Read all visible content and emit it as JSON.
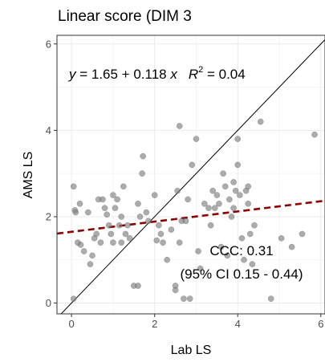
{
  "chart_data": {
    "type": "scatter",
    "title": "Linear score (DIM 3",
    "xlabel": "Lab LS",
    "ylabel": "AMS LS",
    "xlim": [
      -0.35,
      6.1
    ],
    "ylim": [
      -0.25,
      6.2
    ],
    "x_ticks": [
      0,
      2,
      4,
      6
    ],
    "y_ticks": [
      0,
      2,
      4,
      6
    ],
    "grid": true,
    "colors": {
      "points": "#7f7f7f",
      "regression": "#8b0000",
      "identity": "#000000"
    },
    "equation": {
      "lhs": "y",
      "text": " = 1.65 + 0.118 ",
      "var": "x",
      "r2_label": "R",
      "r2_exp": "2",
      "r2_value": " = 0.04"
    },
    "ccc_line1": "CCC: 0.31",
    "ccc_line2": "(95% CI 0.15 - 0.44)",
    "identity_line": {
      "intercept": 0,
      "slope": 1
    },
    "regression_line": {
      "intercept": 1.65,
      "slope": 0.118
    },
    "points": [
      [
        0.05,
        2.7
      ],
      [
        0.08,
        2.15
      ],
      [
        0.1,
        2.1
      ],
      [
        0.15,
        1.4
      ],
      [
        0.2,
        2.3
      ],
      [
        0.22,
        1.35
      ],
      [
        0.3,
        1.2
      ],
      [
        0.05,
        0.1
      ],
      [
        0.4,
        2.1
      ],
      [
        0.45,
        0.9
      ],
      [
        0.5,
        1.1
      ],
      [
        0.55,
        1.5
      ],
      [
        0.6,
        1.6
      ],
      [
        0.65,
        2.4
      ],
      [
        0.7,
        1.4
      ],
      [
        0.75,
        2.4
      ],
      [
        0.8,
        2.2
      ],
      [
        0.85,
        2.05
      ],
      [
        0.9,
        1.8
      ],
      [
        0.95,
        1.6
      ],
      [
        1.0,
        2.5
      ],
      [
        1.0,
        1.4
      ],
      [
        1.05,
        2.2
      ],
      [
        1.1,
        2.4
      ],
      [
        1.15,
        1.8
      ],
      [
        1.2,
        2.0
      ],
      [
        1.2,
        1.4
      ],
      [
        1.25,
        2.7
      ],
      [
        1.3,
        1.6
      ],
      [
        1.35,
        1.8
      ],
      [
        1.4,
        1.5
      ],
      [
        1.5,
        0.4
      ],
      [
        1.6,
        0.4
      ],
      [
        1.6,
        2.3
      ],
      [
        1.65,
        2.0
      ],
      [
        1.7,
        3.0
      ],
      [
        1.72,
        3.4
      ],
      [
        1.8,
        2.1
      ],
      [
        1.85,
        1.9
      ],
      [
        2.0,
        2.5
      ],
      [
        2.05,
        1.45
      ],
      [
        2.1,
        1.8
      ],
      [
        2.15,
        1.6
      ],
      [
        2.2,
        1.4
      ],
      [
        2.3,
        1.0
      ],
      [
        2.4,
        1.7
      ],
      [
        2.5,
        0.4
      ],
      [
        2.5,
        0.3
      ],
      [
        2.55,
        2.6
      ],
      [
        2.6,
        4.1
      ],
      [
        2.6,
        1.4
      ],
      [
        2.65,
        1.9
      ],
      [
        2.7,
        0.1
      ],
      [
        2.75,
        1.9
      ],
      [
        2.8,
        2.4
      ],
      [
        2.85,
        0.1
      ],
      [
        2.9,
        3.2
      ],
      [
        3.0,
        3.8
      ],
      [
        3.05,
        1.2
      ],
      [
        3.1,
        0.8
      ],
      [
        3.2,
        2.3
      ],
      [
        3.3,
        2.2
      ],
      [
        3.35,
        1.8
      ],
      [
        3.4,
        2.6
      ],
      [
        3.45,
        2.2
      ],
      [
        3.5,
        2.5
      ],
      [
        3.55,
        2.3
      ],
      [
        3.6,
        1.3
      ],
      [
        3.65,
        3.0
      ],
      [
        3.7,
        2.7
      ],
      [
        3.75,
        1.1
      ],
      [
        3.8,
        2.4
      ],
      [
        3.85,
        2.0
      ],
      [
        3.9,
        2.8
      ],
      [
        3.9,
        2.2
      ],
      [
        3.95,
        2.6
      ],
      [
        4.0,
        3.2
      ],
      [
        4.0,
        3.8
      ],
      [
        4.05,
        2.5
      ],
      [
        4.1,
        1.5
      ],
      [
        4.15,
        1.0
      ],
      [
        4.2,
        2.6
      ],
      [
        4.25,
        2.3
      ],
      [
        4.25,
        2.7
      ],
      [
        4.3,
        1.6
      ],
      [
        4.35,
        0.9
      ],
      [
        4.4,
        1.8
      ],
      [
        4.55,
        4.2
      ],
      [
        4.8,
        0.1
      ],
      [
        5.05,
        1.5
      ],
      [
        5.3,
        1.3
      ],
      [
        5.55,
        1.6
      ],
      [
        5.85,
        3.9
      ]
    ]
  }
}
